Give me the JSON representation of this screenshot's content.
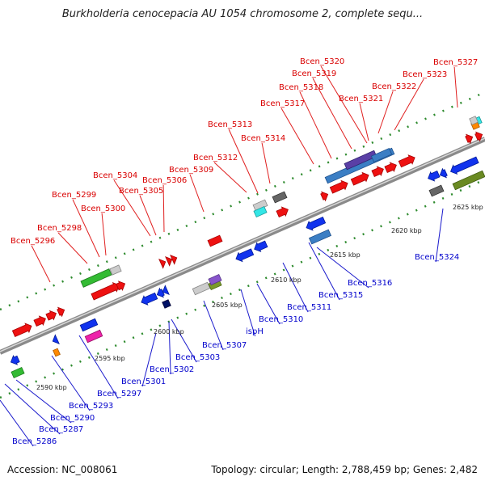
{
  "title": "Burkholderia cenocepacia AU 1054 chromosome 2, complete sequ...",
  "footer": {
    "accession": "Accession: NC_008061",
    "summary": "Topology: circular; Length: 2,788,459 bp; Genes: 2,482"
  },
  "colors": {
    "forward_label": "#d90000",
    "reverse_label": "#0000cc",
    "forward_gene": "#ee1111",
    "reverse_gene": "#1133ee",
    "backbone": "#8a8a8a",
    "tick": "#2e8b2e"
  },
  "kbp_ticks": [
    "2590 kbp",
    "2595 kbp",
    "2600 kbp",
    "2605 kbp",
    "2610 kbp",
    "2615 kbp",
    "2620 kbp",
    "2625 kbp"
  ],
  "forward_labels": [
    "Bcen_5296",
    "Bcen_5298",
    "Bcen_5299",
    "Bcen_5300",
    "Bcen_5304",
    "Bcen_5305",
    "Bcen_5306",
    "Bcen_5309",
    "Bcen_5312",
    "Bcen_5313",
    "Bcen_5314",
    "Bcen_5317",
    "Bcen_5318",
    "Bcen_5319",
    "Bcen_5320",
    "Bcen_5321",
    "Bcen_5322",
    "Bcen_5323",
    "Bcen_5327"
  ],
  "reverse_labels": [
    "Bcen_5286",
    "Bcen_5287",
    "Bcen_5290",
    "Bcen_5293",
    "Bcen_5297",
    "Bcen_5301",
    "Bcen_5302",
    "Bcen_5303",
    "Bcen_5307",
    "ispH",
    "Bcen_5310",
    "Bcen_5311",
    "Bcen_5315",
    "Bcen_5316",
    "Bcen_5324"
  ]
}
